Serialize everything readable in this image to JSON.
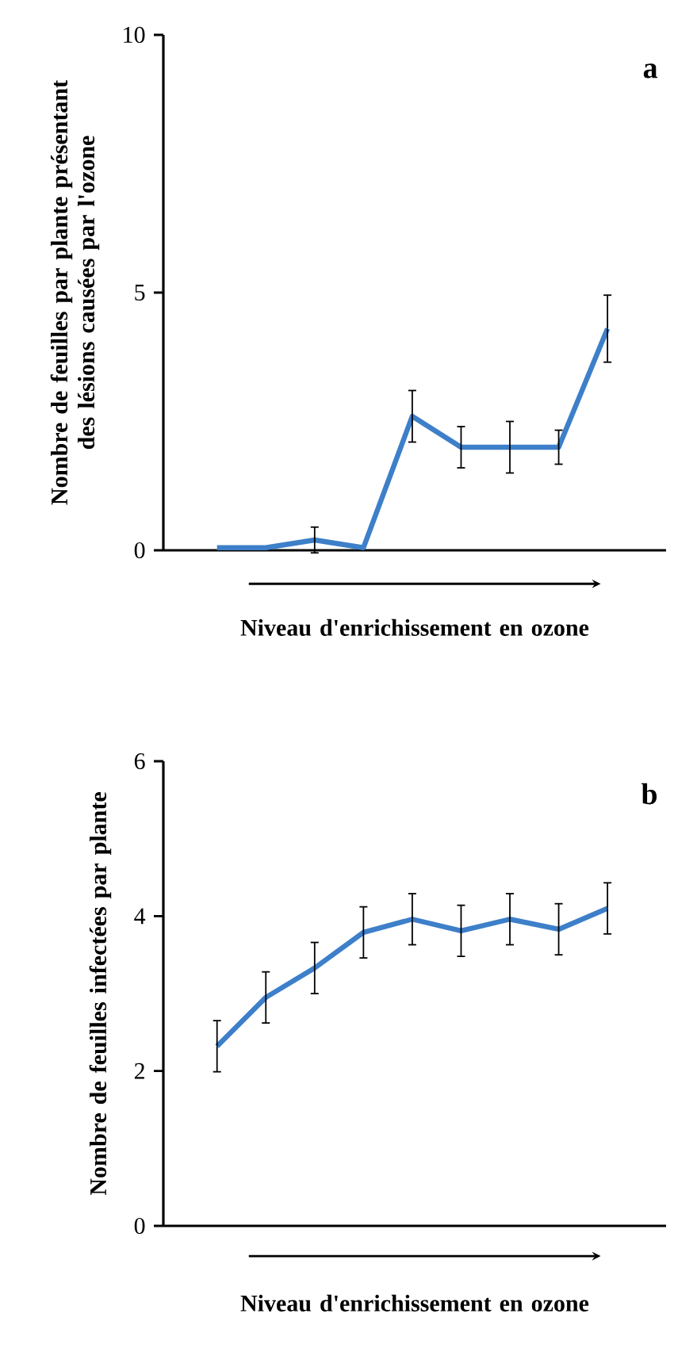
{
  "chart_data": [
    {
      "type": "line",
      "categories": [
        null,
        null,
        null,
        null,
        null,
        null,
        null,
        null,
        null
      ],
      "values": [
        0.05,
        0.05,
        0.2,
        0.05,
        2.6,
        2.0,
        2.0,
        2.0,
        4.3
      ],
      "errors": [
        null,
        null,
        0.25,
        null,
        0.5,
        0.4,
        0.5,
        0.33,
        0.65
      ],
      "color": "#3d7fc9",
      "ylim": [
        0,
        10
      ],
      "yticks": [
        0,
        5,
        10
      ],
      "ylabel": "Nombre de feuilles par plante présentant des lésions causées par l'ozone",
      "xlabel": "Niveau d'enrichissement en ozone",
      "annotations": [
        "a"
      ],
      "grid": false,
      "marker": "none",
      "line_style": "solid"
    },
    {
      "type": "line",
      "categories": [
        null,
        null,
        null,
        null,
        null,
        null,
        null,
        null,
        null
      ],
      "values": [
        2.32,
        2.95,
        3.33,
        3.79,
        3.96,
        3.81,
        3.96,
        3.83,
        4.1
      ],
      "errors": [
        0.33,
        0.33,
        0.33,
        0.33,
        0.33,
        0.33,
        0.33,
        0.33,
        0.33
      ],
      "color": "#3d7fc9",
      "ylim": [
        0,
        6
      ],
      "yticks": [
        0,
        2,
        4,
        6
      ],
      "ylabel": "Nombre de feuilles infectées par plante",
      "xlabel": "Niveau d'enrichissement en ozone",
      "annotations": [
        "b"
      ],
      "grid": false,
      "marker": "none",
      "line_style": "solid"
    }
  ]
}
